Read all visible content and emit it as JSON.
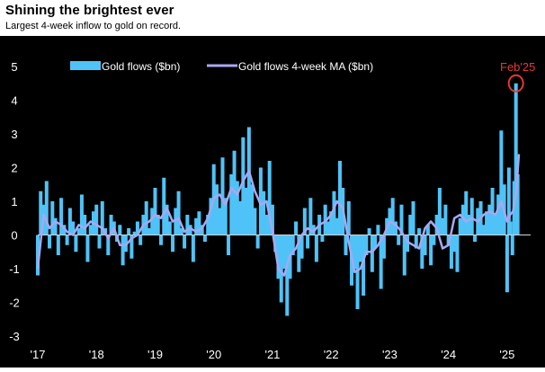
{
  "title": "Shining the brightest ever",
  "subtitle": "Largest 4-week inflow to gold on record.",
  "colors": {
    "flows": "#4fc3f7",
    "ma": "#a8a8f0",
    "highlight": "#e53935",
    "panel": "#000000",
    "text": "#ffffff"
  },
  "chart_data": {
    "type": "area",
    "title": "Shining the brightest ever",
    "subtitle": "Largest 4-week inflow to gold on record.",
    "ylim": [
      -3,
      5
    ],
    "yticks": [
      "5",
      "4",
      "3",
      "2",
      "1",
      "0",
      "-1",
      "-2",
      "-3"
    ],
    "xticks": [
      "'17",
      "'18",
      "'19",
      "'20",
      "'21",
      "'22",
      "'23",
      "'24",
      "'25"
    ],
    "xrange": [
      2017.0,
      2025.4
    ],
    "legend": {
      "placement": "top-left",
      "entries": [
        "Gold flows ($bn)",
        "Gold flows 4-week MA ($bn)"
      ]
    },
    "annotation": {
      "label": "Feb'25",
      "x": 2025.15,
      "y": 4.5
    },
    "series": [
      {
        "name": "Gold flows ($bn)",
        "kind": "bars",
        "x": [
          2017.0,
          2017.05,
          2017.1,
          2017.15,
          2017.2,
          2017.25,
          2017.3,
          2017.35,
          2017.4,
          2017.45,
          2017.5,
          2017.55,
          2017.6,
          2017.65,
          2017.7,
          2017.75,
          2017.8,
          2017.85,
          2017.9,
          2017.95,
          2018.0,
          2018.05,
          2018.1,
          2018.15,
          2018.2,
          2018.25,
          2018.3,
          2018.35,
          2018.4,
          2018.45,
          2018.5,
          2018.55,
          2018.6,
          2018.65,
          2018.7,
          2018.75,
          2018.8,
          2018.85,
          2018.9,
          2018.95,
          2019.0,
          2019.05,
          2019.1,
          2019.15,
          2019.2,
          2019.25,
          2019.3,
          2019.35,
          2019.4,
          2019.45,
          2019.5,
          2019.55,
          2019.6,
          2019.65,
          2019.7,
          2019.75,
          2019.8,
          2019.85,
          2019.9,
          2019.95,
          2020.0,
          2020.05,
          2020.1,
          2020.15,
          2020.2,
          2020.25,
          2020.3,
          2020.35,
          2020.4,
          2020.45,
          2020.5,
          2020.55,
          2020.6,
          2020.65,
          2020.7,
          2020.75,
          2020.8,
          2020.85,
          2020.9,
          2020.95,
          2021.0,
          2021.05,
          2021.1,
          2021.15,
          2021.2,
          2021.25,
          2021.3,
          2021.35,
          2021.4,
          2021.45,
          2021.5,
          2021.55,
          2021.6,
          2021.65,
          2021.7,
          2021.75,
          2021.8,
          2021.85,
          2021.9,
          2021.95,
          2022.0,
          2022.05,
          2022.1,
          2022.15,
          2022.2,
          2022.25,
          2022.3,
          2022.35,
          2022.4,
          2022.45,
          2022.5,
          2022.55,
          2022.6,
          2022.65,
          2022.7,
          2022.75,
          2022.8,
          2022.85,
          2022.9,
          2022.95,
          2023.0,
          2023.05,
          2023.1,
          2023.15,
          2023.2,
          2023.25,
          2023.3,
          2023.35,
          2023.4,
          2023.45,
          2023.5,
          2023.55,
          2023.6,
          2023.65,
          2023.7,
          2023.75,
          2023.8,
          2023.85,
          2023.9,
          2023.95,
          2024.0,
          2024.05,
          2024.1,
          2024.15,
          2024.2,
          2024.25,
          2024.3,
          2024.35,
          2024.4,
          2024.45,
          2024.5,
          2024.55,
          2024.6,
          2024.65,
          2024.7,
          2024.75,
          2024.8,
          2024.85,
          2024.9,
          2024.95,
          2025.0,
          2025.03,
          2025.06,
          2025.09,
          2025.12,
          2025.15,
          2025.18
        ],
        "values": [
          -1.2,
          1.3,
          0.9,
          1.6,
          -0.4,
          1.0,
          0.5,
          -0.6,
          1.1,
          0.3,
          -0.3,
          0.8,
          0.4,
          -0.5,
          0.2,
          1.2,
          0.6,
          -0.8,
          0.3,
          0.7,
          0.9,
          -0.4,
          1.0,
          0.2,
          -0.6,
          0.6,
          0.4,
          -0.2,
          0.3,
          -0.9,
          -0.5,
          0.2,
          -0.7,
          0.1,
          0.4,
          -0.3,
          0.6,
          1.0,
          0.2,
          0.8,
          1.4,
          0.6,
          -0.3,
          1.7,
          0.9,
          0.4,
          -0.5,
          0.8,
          1.3,
          0.2,
          -0.4,
          0.6,
          0.3,
          -0.8,
          0.5,
          0.7,
          0.3,
          -0.2,
          0.6,
          1.1,
          2.1,
          1.5,
          0.8,
          2.3,
          1.1,
          -0.6,
          1.8,
          2.5,
          1.6,
          1.0,
          2.9,
          1.4,
          3.2,
          1.5,
          0.8,
          -0.4,
          2.0,
          1.3,
          0.6,
          2.2,
          0.9,
          -0.5,
          -1.3,
          -2.0,
          -1.0,
          -2.4,
          -1.3,
          -0.6,
          0.4,
          -1.1,
          -0.7,
          0.8,
          -0.4,
          1.1,
          0.3,
          -0.8,
          0.6,
          -0.2,
          0.9,
          0.4,
          0.7,
          1.3,
          0.5,
          2.2,
          1.4,
          -0.6,
          1.0,
          -1.5,
          -1.0,
          -2.2,
          -0.8,
          -1.8,
          -0.6,
          0.2,
          -1.1,
          -0.4,
          0.3,
          -1.6,
          -0.7,
          0.5,
          0.8,
          1.1,
          0.4,
          -0.3,
          0.9,
          -1.2,
          -0.5,
          0.6,
          1.0,
          -0.4,
          0.2,
          -1.0,
          -0.6,
          0.3,
          -0.9,
          -0.3,
          0.6,
          1.4,
          0.5,
          0.9,
          -0.3,
          -1.0,
          -0.5,
          -1.1,
          0.5,
          0.9,
          1.3,
          0.6,
          1.1,
          -0.2,
          0.8,
          1.0,
          0.3,
          0.7,
          0.9,
          1.4,
          0.6,
          1.2,
          3.1,
          1.5,
          -1.7,
          2.0,
          0.4,
          -0.6,
          1.6,
          4.5,
          1.8
        ]
      },
      {
        "name": "Gold flows 4-week MA ($bn)",
        "kind": "line",
        "x": [
          2017.0,
          2017.1,
          2017.2,
          2017.3,
          2017.4,
          2017.5,
          2017.6,
          2017.7,
          2017.8,
          2017.9,
          2018.0,
          2018.1,
          2018.2,
          2018.3,
          2018.4,
          2018.5,
          2018.6,
          2018.7,
          2018.8,
          2018.9,
          2019.0,
          2019.1,
          2019.2,
          2019.3,
          2019.4,
          2019.5,
          2019.6,
          2019.7,
          2019.8,
          2019.9,
          2020.0,
          2020.1,
          2020.2,
          2020.3,
          2020.4,
          2020.5,
          2020.6,
          2020.7,
          2020.8,
          2020.9,
          2021.0,
          2021.1,
          2021.2,
          2021.3,
          2021.4,
          2021.5,
          2021.6,
          2021.7,
          2021.8,
          2021.9,
          2022.0,
          2022.1,
          2022.2,
          2022.3,
          2022.4,
          2022.5,
          2022.6,
          2022.7,
          2022.8,
          2022.9,
          2023.0,
          2023.1,
          2023.2,
          2023.3,
          2023.4,
          2023.5,
          2023.6,
          2023.7,
          2023.8,
          2023.9,
          2024.0,
          2024.1,
          2024.2,
          2024.3,
          2024.4,
          2024.5,
          2024.6,
          2024.7,
          2024.8,
          2024.9,
          2025.0,
          2025.05,
          2025.1,
          2025.15,
          2025.2
        ],
        "values": [
          -1.0,
          0.6,
          0.2,
          0.4,
          0.3,
          0.1,
          0.0,
          0.3,
          0.2,
          0.4,
          0.3,
          0.2,
          -0.1,
          0.2,
          -0.3,
          -0.3,
          -0.1,
          0.0,
          0.3,
          0.4,
          0.6,
          0.5,
          0.8,
          0.4,
          0.5,
          0.1,
          0.2,
          0.1,
          0.2,
          0.5,
          1.1,
          1.2,
          0.9,
          1.4,
          1.2,
          1.6,
          1.9,
          1.3,
          0.9,
          1.0,
          0.1,
          -1.0,
          -1.2,
          -0.6,
          -0.4,
          0.0,
          0.2,
          0.1,
          0.3,
          0.4,
          0.6,
          1.0,
          0.8,
          -0.2,
          -1.1,
          -1.0,
          -0.5,
          -0.5,
          -0.3,
          0.0,
          0.4,
          0.3,
          0.1,
          -0.2,
          -0.3,
          -0.4,
          0.2,
          0.4,
          0.2,
          -0.4,
          -0.3,
          0.5,
          0.6,
          0.4,
          0.5,
          0.4,
          0.6,
          0.7,
          0.6,
          1.0,
          0.4,
          0.6,
          0.7,
          1.2,
          2.4
        ]
      }
    ]
  }
}
